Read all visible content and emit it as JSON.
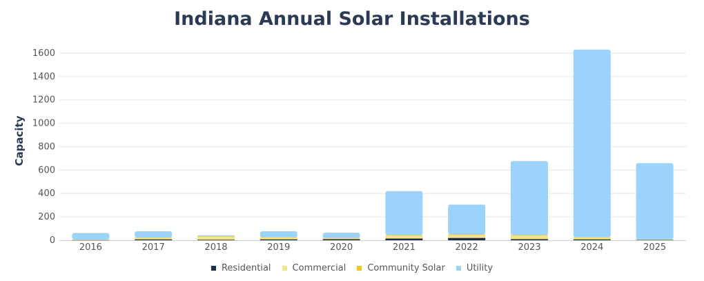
{
  "chart_data": {
    "type": "bar",
    "stacked": true,
    "title": "Indiana Annual Solar Installations",
    "ylabel": "Capacity",
    "xlabel": "",
    "ylim": [
      0,
      1700
    ],
    "yticks": [
      0,
      200,
      400,
      600,
      800,
      1000,
      1200,
      1400,
      1600
    ],
    "grid": true,
    "legend_position": "bottom",
    "categories": [
      "2016",
      "2017",
      "2018",
      "2019",
      "2020",
      "2021",
      "2022",
      "2023",
      "2024",
      "2025"
    ],
    "series": [
      {
        "name": "Residential",
        "color": "#1c2f4a",
        "values": [
          2,
          8,
          5,
          8,
          10,
          15,
          20,
          10,
          8,
          3
        ]
      },
      {
        "name": "Commercial",
        "color": "#f2e48c",
        "values": [
          5,
          12,
          28,
          15,
          8,
          25,
          25,
          30,
          15,
          5
        ]
      },
      {
        "name": "Community Solar",
        "color": "#f5c518",
        "values": [
          0,
          2,
          2,
          2,
          2,
          5,
          5,
          5,
          2,
          0
        ]
      },
      {
        "name": "Utility",
        "color": "#9bd3fb",
        "values": [
          55,
          55,
          8,
          52,
          45,
          375,
          255,
          632,
          1605,
          652
        ]
      }
    ]
  }
}
